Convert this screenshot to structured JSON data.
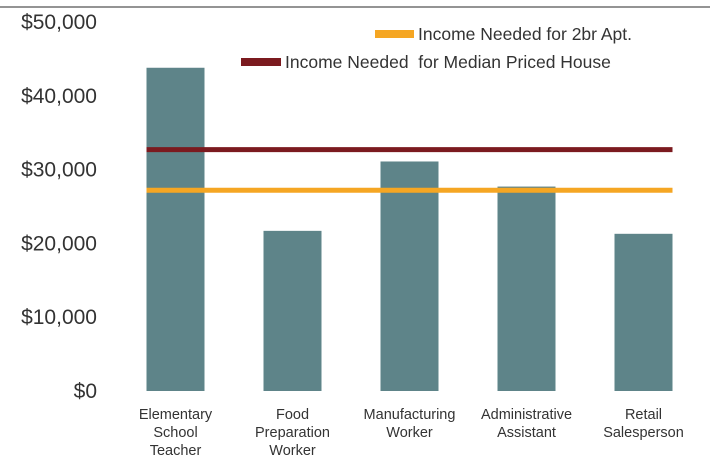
{
  "chart_data": {
    "type": "bar",
    "categories": [
      [
        "Elementary",
        "School",
        "Teacher"
      ],
      [
        "Food",
        "Preparation",
        "Worker"
      ],
      [
        "Manufacturing",
        "Worker"
      ],
      [
        "Administrative",
        "Assistant"
      ],
      [
        "Retail",
        "Salesperson"
      ]
    ],
    "values": [
      43800,
      21700,
      31100,
      27700,
      21300
    ],
    "ylim": [
      0,
      50000
    ],
    "yticks": [
      0,
      10000,
      20000,
      30000,
      40000,
      50000
    ],
    "ytick_labels": [
      "$0",
      "$10,000",
      "$20,000",
      "$30,000",
      "$40,000",
      "$50,000"
    ],
    "reference_lines": [
      {
        "name": "Income Needed for 2br Apt.",
        "value": 27200,
        "color": "#f5a623"
      },
      {
        "name": "Income Needed  for Median Priced House",
        "value": 32700,
        "color": "#7b1a1f"
      }
    ],
    "bar_color": "#5e8489",
    "grid": false,
    "legend_position": "top-right"
  }
}
